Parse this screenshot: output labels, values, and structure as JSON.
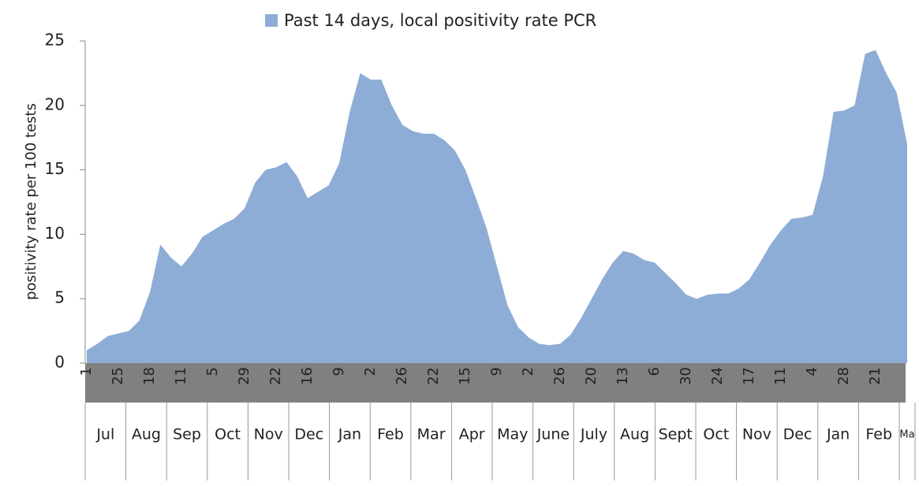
{
  "chart_data": {
    "type": "area",
    "legend": "Past 14 days, local positivity rate PCR",
    "y_label": "positivity rate per 100 tests",
    "color": "#8eadd6",
    "ylim": [
      0,
      25
    ],
    "yticks": [
      0,
      5,
      10,
      15,
      20,
      25
    ],
    "categories": [
      "1",
      null,
      null,
      "25",
      null,
      null,
      "18",
      null,
      null,
      "11",
      null,
      null,
      "5",
      null,
      null,
      "29",
      null,
      null,
      "22",
      null,
      null,
      "16",
      null,
      null,
      "9",
      null,
      null,
      "2",
      null,
      null,
      "26",
      null,
      null,
      "22",
      null,
      null,
      "15",
      null,
      null,
      "9",
      null,
      null,
      "2",
      null,
      null,
      "26",
      null,
      null,
      "20",
      null,
      null,
      "13",
      null,
      null,
      "6",
      null,
      null,
      "30",
      null,
      null,
      "24",
      null,
      null,
      "17",
      null,
      null,
      "11",
      null,
      null,
      "4",
      null,
      null,
      "28",
      null,
      null,
      "21",
      null,
      null,
      null
    ],
    "values": [
      1,
      1.5,
      2.1,
      2.3,
      2.5,
      3.3,
      5.5,
      9.2,
      8.2,
      7.5,
      8.5,
      9.8,
      10.3,
      10.8,
      11.2,
      12,
      14,
      15,
      15.2,
      15.6,
      14.5,
      12.8,
      13.3,
      13.8,
      15.5,
      19.5,
      22.5,
      22,
      22,
      20,
      18.5,
      18,
      17.8,
      17.8,
      17.3,
      16.5,
      15,
      12.8,
      10.5,
      7.5,
      4.5,
      2.8,
      2,
      1.5,
      1.4,
      1.5,
      2.2,
      3.5,
      5,
      6.5,
      7.8,
      8.7,
      8.5,
      8,
      7.8,
      7,
      6.2,
      5.3,
      5,
      5.3,
      5.4,
      5.4,
      5.8,
      6.5,
      7.8,
      9.2,
      10.3,
      11.2,
      11.3,
      11.5,
      14.5,
      19.5,
      19.6,
      20,
      24,
      24.3,
      22.5,
      21,
      17
    ],
    "months": [
      "Jul",
      "Aug",
      "Sep",
      "Oct",
      "Nov",
      "Dec",
      "Jan",
      "Feb",
      "Mar",
      "Apr",
      "May",
      "June",
      "July",
      "Aug",
      "Sept",
      "Oct",
      "Nov",
      "Dec",
      "Jan",
      "Feb",
      "Ma"
    ]
  }
}
